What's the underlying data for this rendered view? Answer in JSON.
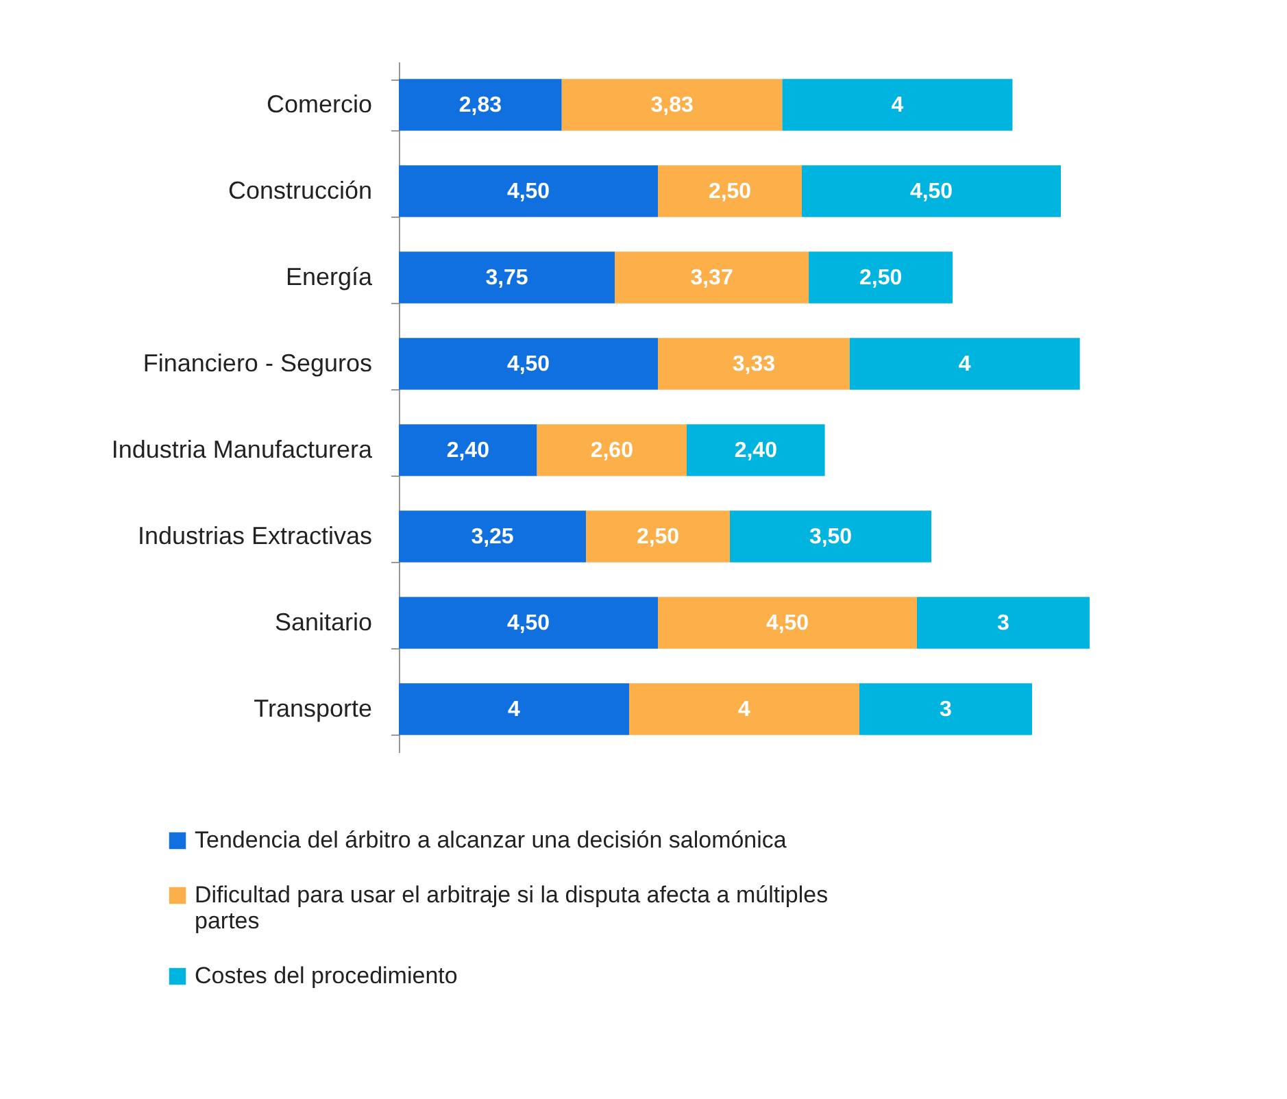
{
  "chart_data": {
    "type": "bar",
    "orientation": "horizontal",
    "stacked": true,
    "legend": "bottom",
    "categories": [
      "Comercio",
      "Construcción",
      "Energía",
      "Financiero - Seguros",
      "Industria Manufacturera",
      "Industrias Extractivas",
      "Sanitario",
      "Transporte"
    ],
    "series": [
      {
        "name": "Tendencia del árbitro a alcanzar una decisión salomónica",
        "color": "#1170e0",
        "values": [
          2.83,
          4.5,
          3.75,
          4.5,
          2.4,
          3.25,
          4.5,
          4
        ],
        "value_labels": [
          "2,83",
          "4,50",
          "3,75",
          "4,50",
          "2,40",
          "3,25",
          "4,50",
          "4"
        ]
      },
      {
        "name": "Dificultad para usar el arbitraje si la disputa afecta a múltiples partes",
        "color": "#fdb04a",
        "values": [
          3.83,
          2.5,
          3.37,
          3.33,
          2.6,
          2.5,
          4.5,
          4
        ],
        "value_labels": [
          "3,83",
          "2,50",
          "3,37",
          "3,33",
          "2,60",
          "2,50",
          "4,50",
          "4"
        ]
      },
      {
        "name": "Costes del procedimiento",
        "color": "#00b4e0",
        "values": [
          4,
          4.5,
          2.5,
          4,
          2.4,
          3.5,
          3,
          3
        ],
        "value_labels": [
          "4",
          "4,50",
          "2,50",
          "4",
          "2,40",
          "3,50",
          "3",
          "3"
        ]
      }
    ]
  }
}
